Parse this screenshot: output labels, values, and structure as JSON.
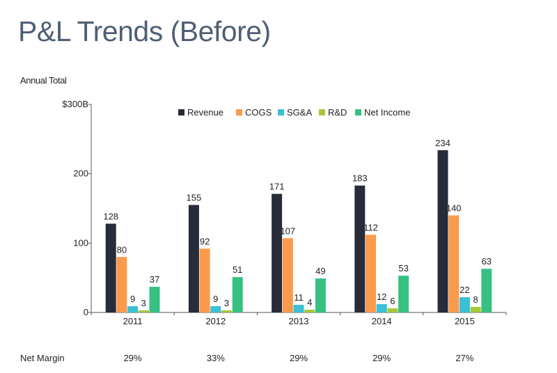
{
  "page": {
    "title": "P&L Trends (Before)",
    "subtitle": "Annual Total"
  },
  "chart_data": {
    "type": "bar",
    "categories": [
      "2011",
      "2012",
      "2013",
      "2014",
      "2015"
    ],
    "series": [
      {
        "name": "Revenue",
        "values": [
          128,
          155,
          171,
          183,
          234
        ],
        "color": "#272c38"
      },
      {
        "name": "COGS",
        "values": [
          80,
          92,
          107,
          112,
          140
        ],
        "color": "#fa9a4d"
      },
      {
        "name": "SG&A",
        "values": [
          9,
          9,
          11,
          12,
          22
        ],
        "color": "#3bc0d4"
      },
      {
        "name": "R&D",
        "values": [
          3,
          3,
          4,
          6,
          8
        ],
        "color": "#a6c73a"
      },
      {
        "name": "Net Income",
        "values": [
          37,
          51,
          49,
          53,
          63
        ],
        "color": "#36c182"
      }
    ],
    "yticks": [
      "0",
      "100",
      "200",
      "$300B"
    ],
    "ylim": [
      0,
      300
    ],
    "legend_position": "top",
    "grid": false
  },
  "net_margin": {
    "label": "Net Margin",
    "values": [
      "29%",
      "33%",
      "29%",
      "29%",
      "27%"
    ]
  }
}
